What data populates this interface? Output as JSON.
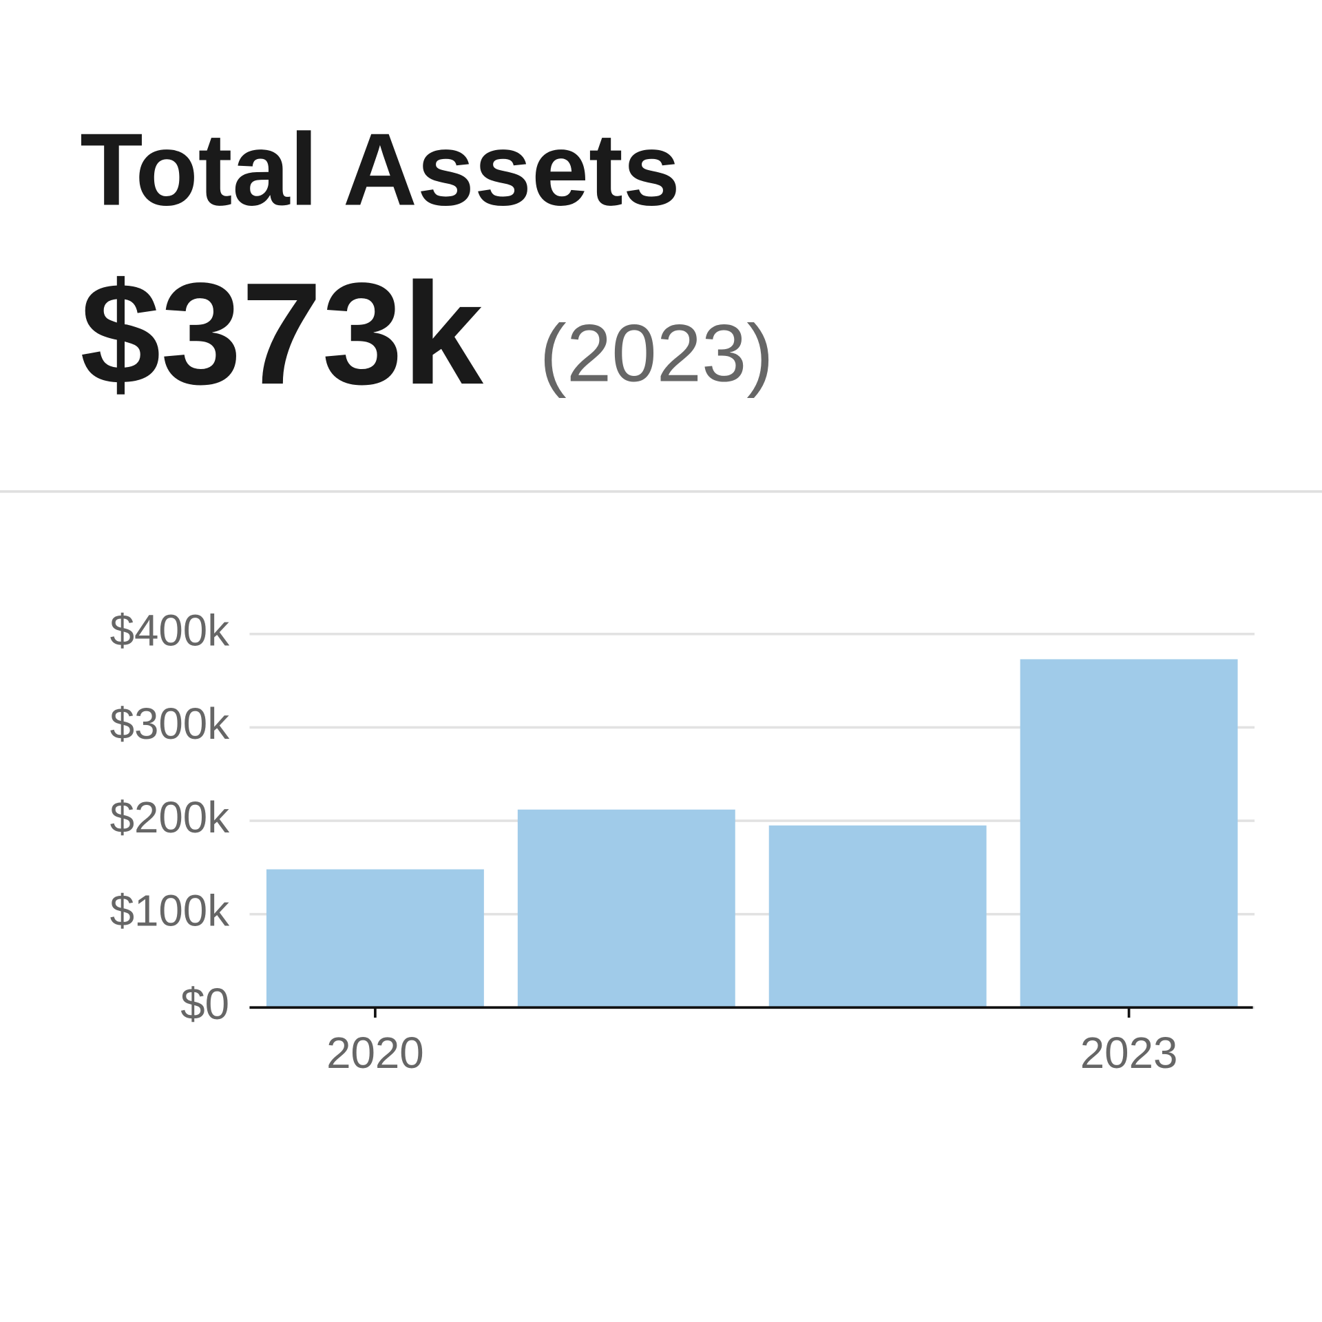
{
  "chart_data": {
    "type": "bar",
    "title": "Total Assets",
    "headline": "$373k",
    "headline_year": "(2023)",
    "categories": [
      "2020",
      null,
      null,
      "2023"
    ],
    "values": [
      148000,
      212000,
      195000,
      373000
    ],
    "color": "#a0cbe9",
    "ylim": [
      0,
      400000
    ],
    "yticks": [
      {
        "value": 0,
        "label": "$0"
      },
      {
        "value": 100000,
        "label": "$100k"
      },
      {
        "value": 200000,
        "label": "$200k"
      },
      {
        "value": 300000,
        "label": "$300k"
      },
      {
        "value": 400000,
        "label": "$400k"
      }
    ],
    "grid": true
  }
}
